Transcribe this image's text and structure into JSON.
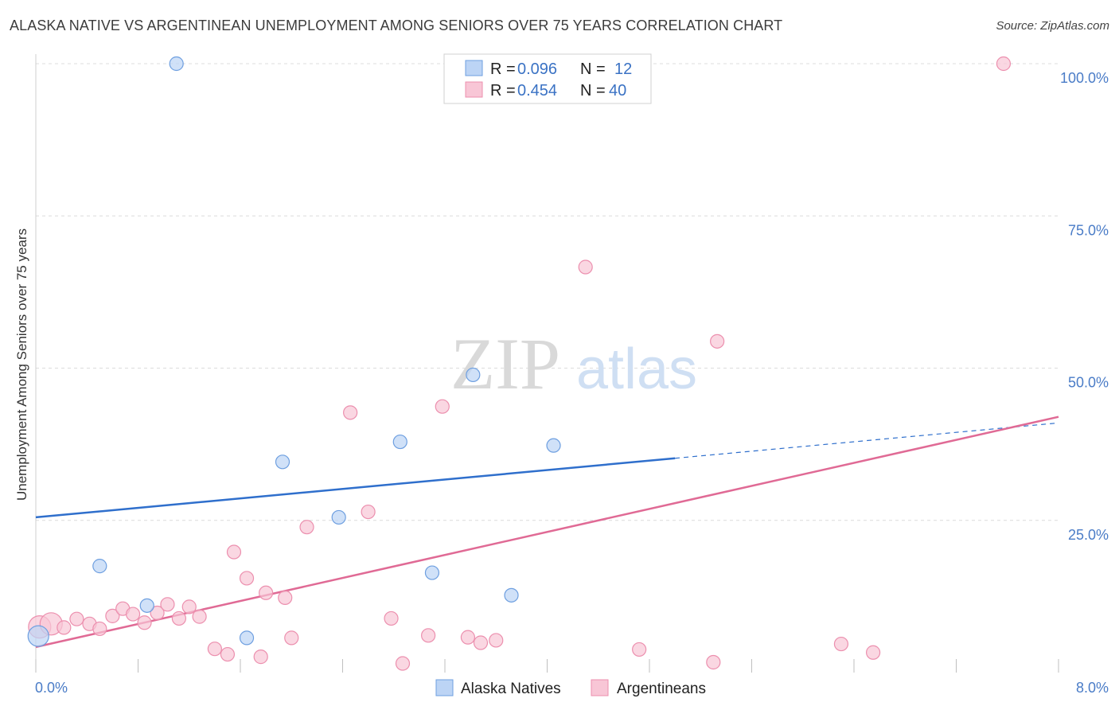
{
  "chart_data": {
    "type": "scatter",
    "title": "ALASKA NATIVE VS ARGENTINEAN UNEMPLOYMENT AMONG SENIORS OVER 75 YEARS CORRELATION CHART",
    "source": "Source: ZipAtlas.com",
    "xlabel": "",
    "ylabel": "Unemployment Among Seniors over 75 years",
    "xlim": [
      0,
      8
    ],
    "ylim": [
      0,
      100
    ],
    "x_tick_labels": [
      {
        "value": 0,
        "label": "0.0%"
      },
      {
        "value": 8,
        "label": "8.0%"
      }
    ],
    "y_tick_labels": [
      {
        "value": 25,
        "label": "25.0%"
      },
      {
        "value": 50,
        "label": "50.0%"
      },
      {
        "value": 75,
        "label": "75.0%"
      },
      {
        "value": 100,
        "label": "100.0%"
      }
    ],
    "watermark": {
      "part1": "ZIP",
      "part2": "atlas"
    },
    "stats": [
      {
        "r_label": "R =",
        "r": "0.096",
        "n_label": "N =",
        "n": "12"
      },
      {
        "r_label": "R =",
        "r": "0.454",
        "n_label": "N =",
        "n": "40"
      }
    ],
    "series": [
      {
        "name": "Alaska Natives",
        "color": "#6e9fe0",
        "fill": "#bcd4f5",
        "trend_color": "#2f6fcc",
        "trend": {
          "x0": 0,
          "y0": 25.5,
          "x1": 5.0,
          "y1": 35.2,
          "dash_x1": 8.0,
          "dash_y1": 41.0
        },
        "points": [
          {
            "x": 0.02,
            "y": 6.0
          },
          {
            "x": 0.5,
            "y": 17.5
          },
          {
            "x": 0.87,
            "y": 11.0
          },
          {
            "x": 1.1,
            "y": 100.0
          },
          {
            "x": 1.65,
            "y": 5.7
          },
          {
            "x": 1.93,
            "y": 34.6
          },
          {
            "x": 2.37,
            "y": 25.5
          },
          {
            "x": 2.85,
            "y": 37.9
          },
          {
            "x": 3.1,
            "y": 16.4
          },
          {
            "x": 3.42,
            "y": 48.9
          },
          {
            "x": 3.72,
            "y": 12.7
          },
          {
            "x": 4.05,
            "y": 37.3
          }
        ]
      },
      {
        "name": "Argentineans",
        "color": "#ec8fae",
        "fill": "#f8c6d6",
        "trend_color": "#e06a95",
        "trend": {
          "x0": 0,
          "y0": 4.2,
          "x1": 8.0,
          "y1": 42.0
        },
        "points": [
          {
            "x": 0.03,
            "y": 7.5
          },
          {
            "x": 0.12,
            "y": 8.0
          },
          {
            "x": 0.22,
            "y": 7.4
          },
          {
            "x": 0.32,
            "y": 8.8
          },
          {
            "x": 0.42,
            "y": 8.0
          },
          {
            "x": 0.5,
            "y": 7.2
          },
          {
            "x": 0.6,
            "y": 9.3
          },
          {
            "x": 0.68,
            "y": 10.5
          },
          {
            "x": 0.76,
            "y": 9.6
          },
          {
            "x": 0.85,
            "y": 8.2
          },
          {
            "x": 0.95,
            "y": 9.8
          },
          {
            "x": 1.03,
            "y": 11.2
          },
          {
            "x": 1.12,
            "y": 8.9
          },
          {
            "x": 1.2,
            "y": 10.8
          },
          {
            "x": 1.28,
            "y": 9.2
          },
          {
            "x": 1.4,
            "y": 3.9
          },
          {
            "x": 1.5,
            "y": 3.0
          },
          {
            "x": 1.55,
            "y": 19.8
          },
          {
            "x": 1.65,
            "y": 15.5
          },
          {
            "x": 1.76,
            "y": 2.6
          },
          {
            "x": 1.8,
            "y": 13.1
          },
          {
            "x": 1.95,
            "y": 12.3
          },
          {
            "x": 2.0,
            "y": 5.7
          },
          {
            "x": 2.12,
            "y": 23.9
          },
          {
            "x": 2.46,
            "y": 42.7
          },
          {
            "x": 2.6,
            "y": 26.4
          },
          {
            "x": 2.78,
            "y": 8.9
          },
          {
            "x": 2.87,
            "y": 1.5
          },
          {
            "x": 3.07,
            "y": 6.1
          },
          {
            "x": 3.18,
            "y": 43.7
          },
          {
            "x": 3.38,
            "y": 5.8
          },
          {
            "x": 3.48,
            "y": 4.9
          },
          {
            "x": 3.6,
            "y": 5.3
          },
          {
            "x": 4.3,
            "y": 66.6
          },
          {
            "x": 4.72,
            "y": 3.8
          },
          {
            "x": 5.33,
            "y": 54.4
          },
          {
            "x": 5.3,
            "y": 1.7
          },
          {
            "x": 6.3,
            "y": 4.7
          },
          {
            "x": 6.55,
            "y": 3.3
          },
          {
            "x": 7.57,
            "y": 100.0
          }
        ]
      }
    ]
  }
}
